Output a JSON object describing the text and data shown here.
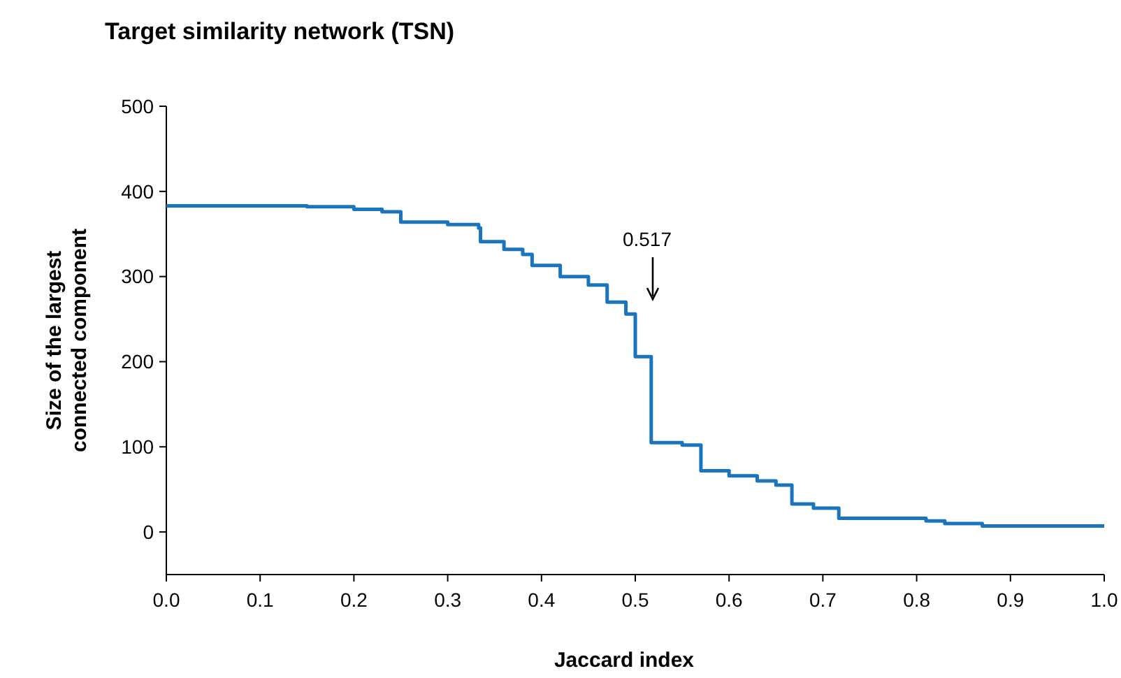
{
  "chart_data": {
    "type": "step",
    "title": "Target similarity network (TSN)",
    "xlabel": "Jaccard index",
    "ylabel": "Size of the largest connected component",
    "x": [
      0,
      0.15,
      0.2,
      0.23,
      0.25,
      0.3,
      0.333,
      0.335,
      0.36,
      0.38,
      0.39,
      0.42,
      0.45,
      0.47,
      0.49,
      0.5,
      0.517,
      0.52,
      0.55,
      0.57,
      0.6,
      0.63,
      0.65,
      0.667,
      0.69,
      0.717,
      0.81,
      0.83,
      0.87,
      1.0
    ],
    "series": [
      {
        "color": "#1a75bc",
        "values": [
          383,
          382,
          379,
          376,
          364,
          361,
          357,
          341,
          332,
          326,
          313,
          300,
          290,
          270,
          256,
          206,
          105,
          105,
          102,
          72,
          66,
          60,
          55,
          33,
          28,
          16,
          13,
          10,
          7,
          7
        ]
      }
    ],
    "xlim": [
      0,
      1.0
    ],
    "xticks": [
      {
        "value": 0,
        "label": "0.0"
      },
      0.1,
      0.2,
      0.3,
      0.4,
      0.5,
      0.6,
      0.7,
      0.8,
      0.9,
      {
        "value": 1,
        "label": "1.0"
      }
    ],
    "ylim": [
      -50,
      500
    ],
    "yticks": [
      0,
      100,
      200,
      300,
      400,
      500
    ],
    "annotations": [
      "0.517"
    ],
    "grid": false,
    "marker": "none",
    "line_style": "solid"
  }
}
